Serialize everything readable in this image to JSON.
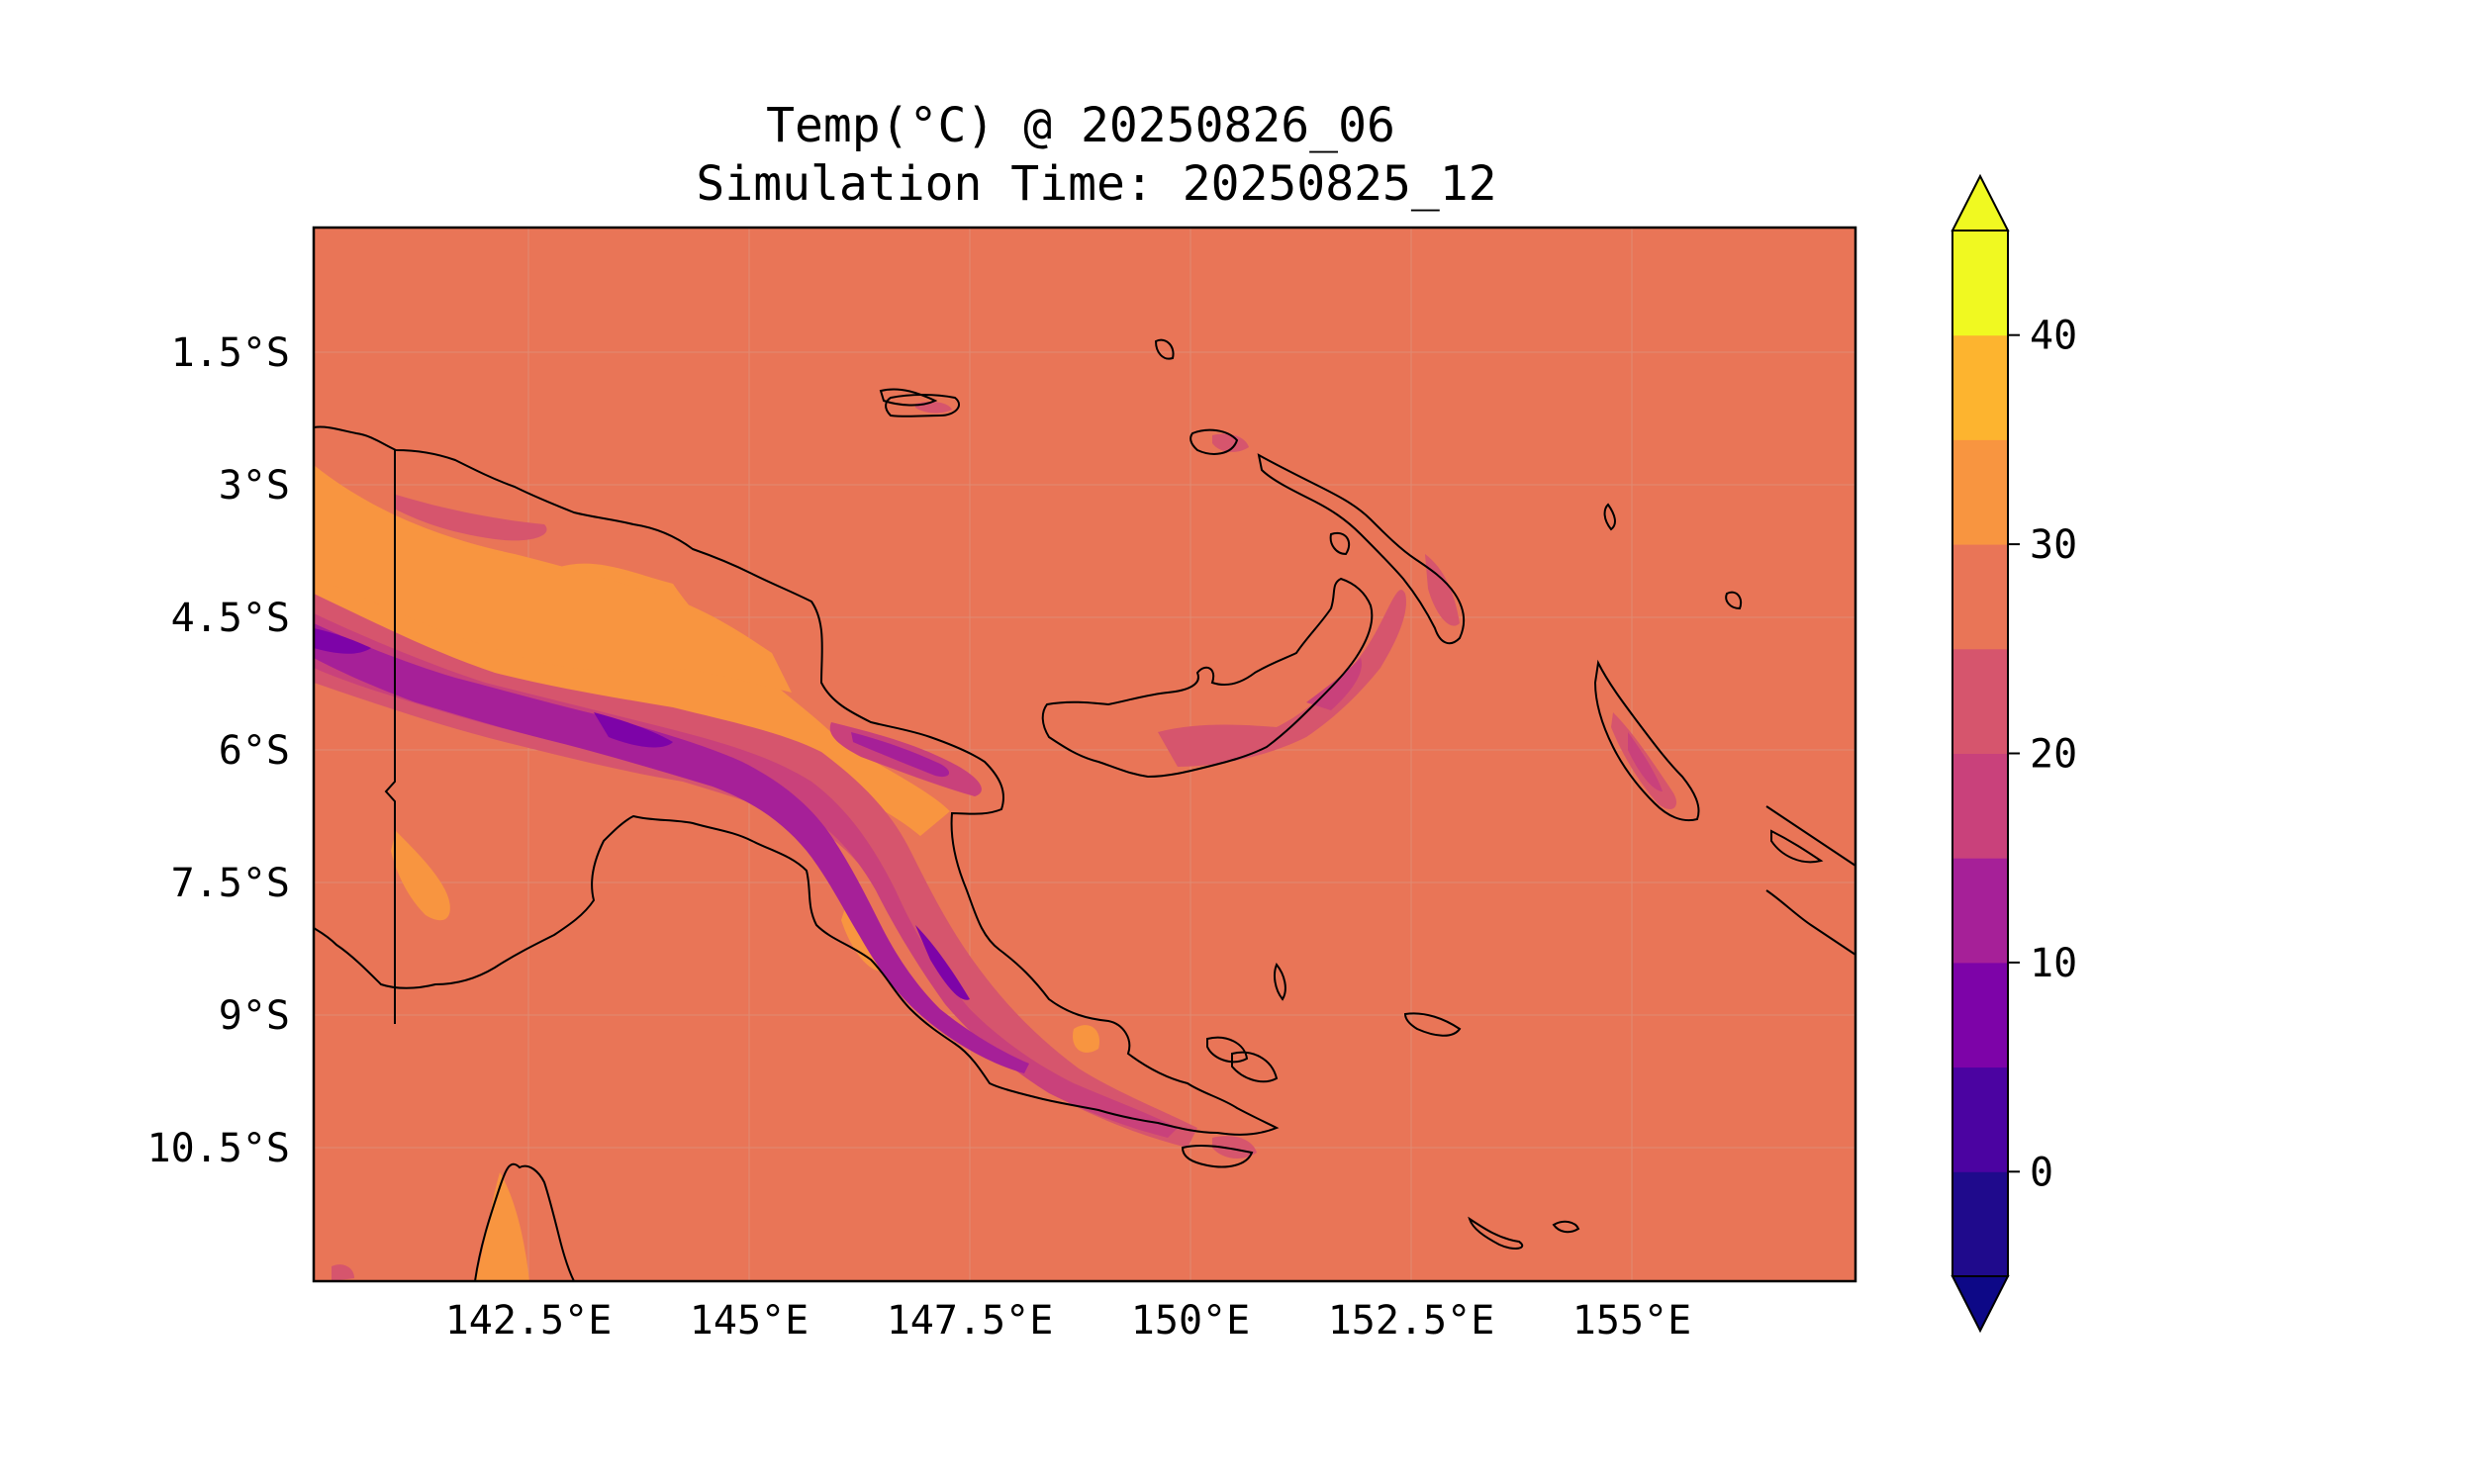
{
  "title": {
    "line1": "Temp(°C) @ 20250826_06",
    "line2": "Simulation Time: 20250825_12"
  },
  "map": {
    "lon_ticks": [
      "142.5°E",
      "145°E",
      "147.5°E",
      "150°E",
      "152.5°E",
      "155°E"
    ],
    "lat_ticks": [
      "1.5°S",
      "3°S",
      "4.5°S",
      "6°S",
      "7.5°S",
      "9°S",
      "10.5°S"
    ],
    "ocean_color": "#e97557"
  },
  "colorbar": {
    "colormap": "plasma",
    "extend": "both",
    "levels": [
      -5,
      0,
      5,
      10,
      15,
      20,
      25,
      30,
      35,
      40,
      45
    ],
    "colors": [
      "#1f0a8c",
      "#4b03a1",
      "#7d03a8",
      "#a62098",
      "#c9417b",
      "#d6556d",
      "#e97557",
      "#f89540",
      "#fdb42f",
      "#f0f921"
    ],
    "under_color": "#0d0887",
    "over_color": "#f0f921",
    "tick_labels": [
      "0",
      "10",
      "20",
      "30",
      "40"
    ]
  }
}
